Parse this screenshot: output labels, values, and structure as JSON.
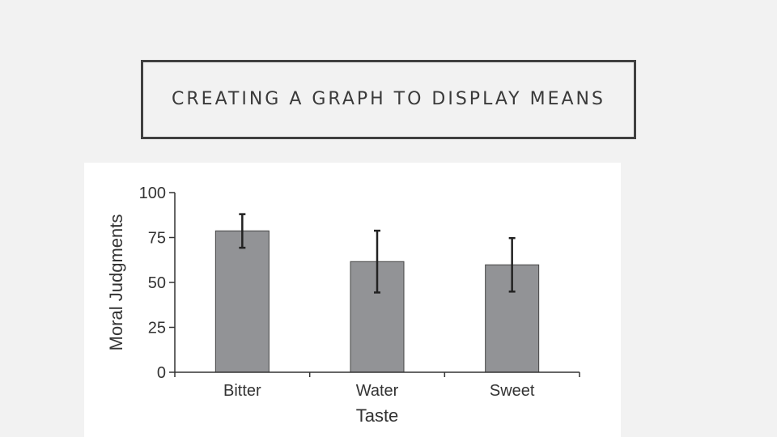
{
  "slide": {
    "title": "CREATING A GRAPH TO DISPLAY MEANS"
  },
  "colors": {
    "background": "#f2f2f2",
    "title_border": "#404040",
    "bar_fill": "#929396",
    "axis": "#333333"
  },
  "chart_data": {
    "type": "bar",
    "title": "",
    "xlabel": "Taste",
    "ylabel": "Moral Judgments",
    "categories": [
      "Bitter",
      "Water",
      "Sweet"
    ],
    "values": [
      78.7,
      61.6,
      59.8
    ],
    "error_low": [
      69.3,
      44.4,
      44.9
    ],
    "error_high": [
      88.0,
      78.8,
      74.7
    ],
    "ylim": [
      0,
      100
    ],
    "yticks": [
      0,
      25,
      50,
      75,
      100
    ],
    "grid": false,
    "legend": "none"
  }
}
